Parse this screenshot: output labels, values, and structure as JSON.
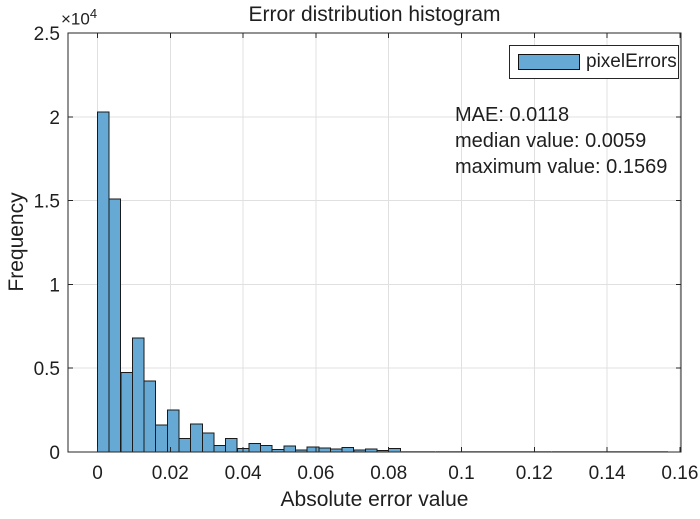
{
  "chart_data": {
    "type": "bar",
    "subtype": "histogram",
    "title": "Error distribution histogram",
    "xlabel": "Absolute error value",
    "ylabel": "Frequency",
    "y_axis_multiplier": {
      "base": "×10",
      "exponent": "4"
    },
    "legend": {
      "position": "top-right",
      "entries": [
        {
          "label": "pixelErrors",
          "color": "#66A9D4"
        }
      ]
    },
    "annotations": {
      "lines": [
        "MAE: 0.0118",
        "median value: 0.0059",
        "maximum value: 0.1569"
      ]
    },
    "grid": true,
    "bins": {
      "start": 0,
      "width": 0.0032
    },
    "values": [
      20300,
      15100,
      4750,
      6800,
      4250,
      1600,
      2500,
      800,
      1680,
      1120,
      400,
      820,
      220,
      520,
      380,
      150,
      350,
      130,
      300,
      240,
      180,
      260,
      110,
      180,
      90,
      200,
      60,
      60,
      50,
      45,
      35,
      35,
      30,
      30,
      30,
      30,
      30,
      25,
      25,
      25,
      25,
      25,
      25,
      25,
      25,
      25,
      25,
      25,
      25
    ],
    "xlim": [
      -0.0081,
      0.1603
    ],
    "ylim": [
      0,
      25000
    ],
    "x_ticks": [
      0,
      0.02,
      0.04,
      0.06,
      0.08,
      0.1,
      0.12,
      0.14,
      0.16
    ],
    "x_tick_labels": [
      "0",
      "0.02",
      "0.04",
      "0.06",
      "0.08",
      "0.1",
      "0.12",
      "0.14",
      "0.16"
    ],
    "y_ticks": [
      0,
      5000,
      10000,
      15000,
      20000,
      25000
    ],
    "y_tick_labels": [
      "0",
      "0.5",
      "1",
      "1.5",
      "2",
      "2.5"
    ],
    "colors": {
      "bar_fill": "#66A9D4",
      "bar_edge": "#1a1a1a",
      "tail_fill": "#9fa8ad",
      "axis": "#262626",
      "grid": "#e0e0e0",
      "text": "#1f1f1f",
      "background": "#ffffff"
    }
  }
}
